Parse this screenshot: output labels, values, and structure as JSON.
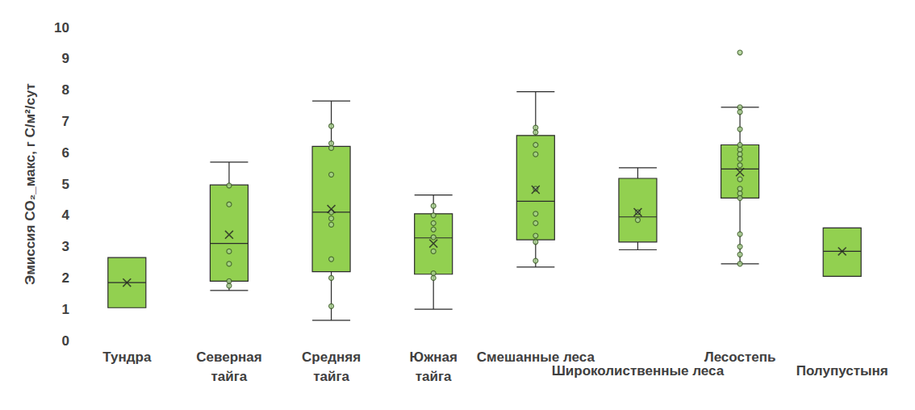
{
  "chart_data": {
    "type": "boxplot",
    "y_label": "Эмиссия CO₂_макс, г С/м²/сут",
    "categories": [
      "Тундра",
      "Северная тайга",
      "Средняя тайга",
      "Южная тайга",
      "Смешанные леса",
      "Широколиственные леса",
      "Лесостепь",
      "Полупустыня"
    ],
    "boxes": [
      [
        1.05,
        1.05,
        1.85,
        2.65,
        2.65
      ],
      [
        1.6,
        1.9,
        3.1,
        4.97,
        5.7
      ],
      [
        0.65,
        2.2,
        4.1,
        6.2,
        7.65
      ],
      [
        1.0,
        2.12,
        3.28,
        4.05,
        4.65
      ],
      [
        2.35,
        3.22,
        4.45,
        6.55,
        7.95
      ],
      [
        2.9,
        3.15,
        3.95,
        5.18,
        5.52
      ],
      [
        2.45,
        4.55,
        5.48,
        6.25,
        7.45
      ],
      [
        2.05,
        2.05,
        2.85,
        3.6,
        3.6
      ]
    ],
    "means": [
      1.85,
      3.38,
      4.2,
      3.1,
      4.82,
      4.1,
      5.38,
      2.85
    ],
    "points": [
      [],
      [
        4.95,
        4.35,
        2.85,
        2.45,
        1.9,
        1.75
      ],
      [
        6.85,
        6.3,
        6.15,
        5.3,
        4.1,
        3.9,
        3.7,
        2.6,
        2.0,
        1.1
      ],
      [
        4.3,
        4.0,
        3.75,
        3.55,
        3.3,
        2.85,
        2.15,
        2.0
      ],
      [
        6.8,
        6.65,
        6.25,
        5.95,
        4.85,
        4.05,
        3.75,
        3.35,
        3.15,
        2.55
      ],
      [
        4.1,
        3.85
      ],
      [
        9.2,
        7.45,
        7.3,
        6.75,
        6.25,
        6.1,
        5.95,
        5.8,
        5.6,
        5.15,
        4.85,
        4.7,
        4.55,
        3.4,
        3.0,
        2.75,
        2.45
      ],
      []
    ],
    "color": "#92d050",
    "ylim": [
      0,
      10
    ],
    "yticks": [
      0,
      1,
      2,
      3,
      4,
      5,
      6,
      7,
      8,
      9,
      10
    ],
    "grid": false
  }
}
